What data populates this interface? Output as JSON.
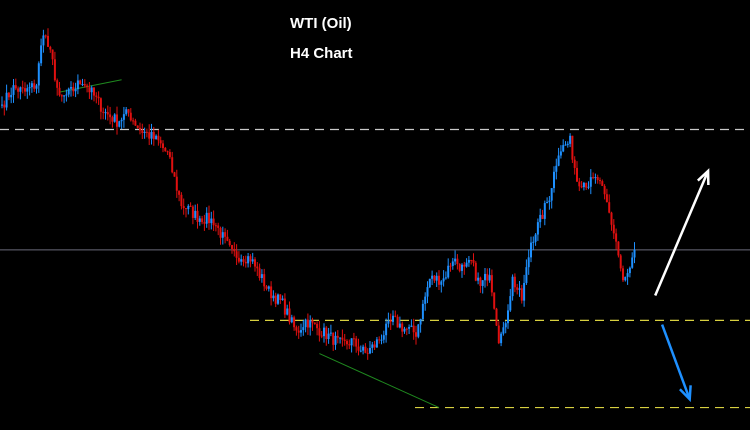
{
  "chart_data": {
    "type": "candlestick",
    "title": "WTI (Oil)",
    "subtitle": "H4 Chart",
    "xlabel": "",
    "ylabel": "",
    "ylim": [
      0,
      100
    ],
    "grid": false,
    "colors": {
      "background": "#000000",
      "bull": "#1e90ff",
      "bear": "#e01010",
      "resistance_line": "#c8c8c8",
      "support_line": "#d8d040",
      "current_price_line": "#6a6a7a",
      "trend_line": "#1f8a1f",
      "bull_arrow": "#ffffff",
      "bear_arrow": "#1e90ff",
      "title": "#ffffff"
    },
    "anchors": [
      [
        0,
        76
      ],
      [
        5,
        80
      ],
      [
        10,
        79
      ],
      [
        15,
        81
      ],
      [
        18,
        94
      ],
      [
        22,
        86
      ],
      [
        25,
        77
      ],
      [
        30,
        79
      ],
      [
        35,
        82
      ],
      [
        40,
        78
      ],
      [
        45,
        74
      ],
      [
        50,
        72
      ],
      [
        55,
        74
      ],
      [
        60,
        70
      ],
      [
        63,
        69
      ],
      [
        68,
        67
      ],
      [
        72,
        64
      ],
      [
        78,
        52
      ],
      [
        85,
        49
      ],
      [
        92,
        48
      ],
      [
        100,
        40
      ],
      [
        108,
        39
      ],
      [
        116,
        31
      ],
      [
        122,
        28
      ],
      [
        128,
        21
      ],
      [
        132,
        24
      ],
      [
        140,
        21
      ],
      [
        148,
        18
      ],
      [
        152,
        19
      ],
      [
        158,
        16
      ],
      [
        162,
        18
      ],
      [
        170,
        24
      ],
      [
        175,
        22
      ],
      [
        180,
        21
      ],
      [
        186,
        34
      ],
      [
        192,
        34
      ],
      [
        196,
        39
      ],
      [
        201,
        36
      ],
      [
        204,
        38
      ],
      [
        208,
        32
      ],
      [
        212,
        36
      ],
      [
        216,
        20
      ],
      [
        218,
        21
      ],
      [
        222,
        34
      ],
      [
        226,
        29
      ],
      [
        230,
        43
      ],
      [
        234,
        48
      ],
      [
        238,
        54
      ],
      [
        242,
        65
      ],
      [
        247,
        67
      ],
      [
        250,
        58
      ],
      [
        255,
        57
      ],
      [
        259,
        58
      ],
      [
        263,
        52
      ],
      [
        267,
        43
      ],
      [
        270,
        33
      ],
      [
        273,
        36
      ],
      [
        275,
        40
      ]
    ],
    "levels": {
      "resistance": 70,
      "current_price": 41,
      "support_1": 24,
      "support_2": 3
    },
    "trend_lines": [
      {
        "from": [
          25,
          79
        ],
        "to": [
          52,
          82
        ]
      },
      {
        "from": [
          138,
          16
        ],
        "to": [
          190,
          3
        ]
      }
    ],
    "arrows": [
      {
        "direction": "up",
        "from": [
          284,
          30
        ],
        "to": [
          307,
          60
        ]
      },
      {
        "direction": "down",
        "from": [
          287,
          23
        ],
        "to": [
          299,
          5
        ]
      }
    ]
  }
}
